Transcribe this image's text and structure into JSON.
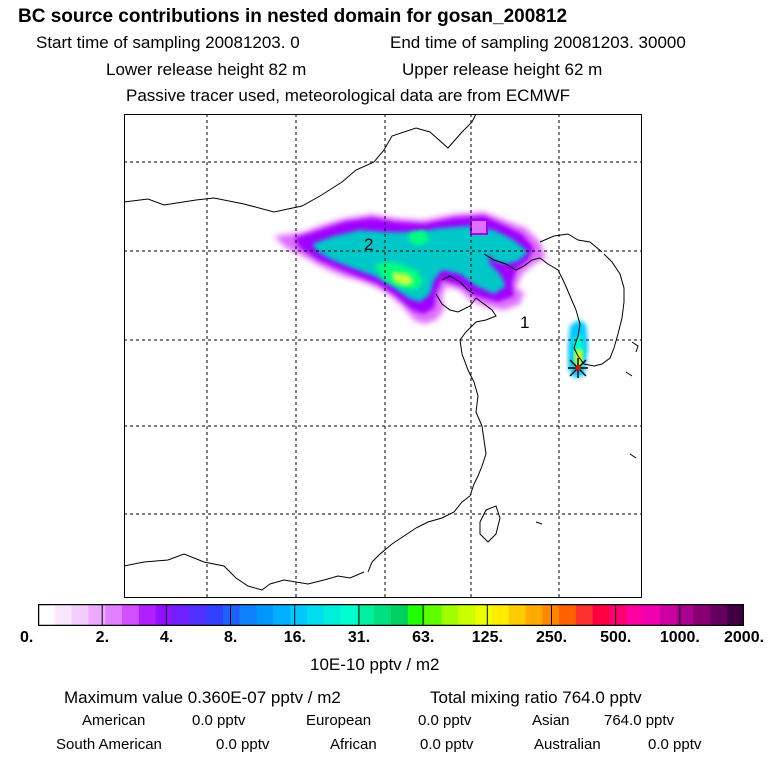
{
  "header": {
    "title": "BC  source contributions in nested domain for gosan_200812",
    "start_label": "Start time of sampling 20081203.     0",
    "end_label": "End time of sampling 20081203. 30000",
    "lower_label": "Lower release height   82 m",
    "upper_label": "Upper release height   62 m",
    "tracer_line": "Passive tracer used, meteorological data are from ECMWF"
  },
  "map": {
    "markers": [
      {
        "label": "2",
        "lon": 117.0,
        "lat": 43.2
      },
      {
        "label": "1",
        "lon": 125.5,
        "lat": 37.0
      }
    ],
    "receptor": {
      "name": "gosan",
      "lon": 126.2,
      "lat": 33.3
    },
    "plume_colors": {
      "outer": "#a000ff",
      "edge": "#e070ff",
      "mid": "#00c8c8",
      "core": "#00ff80",
      "peak": "#e0ff00"
    }
  },
  "colorbar": {
    "ticks": [
      "0.",
      "2.",
      "4.",
      "8.",
      "16.",
      "31.",
      "63.",
      "125.",
      "250.",
      "500.",
      "1000.",
      "2000."
    ],
    "colors": [
      "#ffffff",
      "#fbe6ff",
      "#f5ccff",
      "#eeaaff",
      "#e080ff",
      "#d050ff",
      "#b020ff",
      "#9010ff",
      "#7020ff",
      "#5030ff",
      "#3040ff",
      "#2060ff",
      "#1080ff",
      "#0098ff",
      "#00b0ff",
      "#00c8ff",
      "#00ddee",
      "#00eedd",
      "#00ffcc",
      "#00f0a0",
      "#00e080",
      "#00d060",
      "#20ff00",
      "#60ff00",
      "#a0ff00",
      "#ccff00",
      "#eeff00",
      "#ffee00",
      "#ffcc00",
      "#ffaa00",
      "#ff8800",
      "#ff6000",
      "#ff3030",
      "#ff0040",
      "#ff0070",
      "#ff00a0",
      "#ee00b0",
      "#cc00a0",
      "#aa0090",
      "#880070",
      "#660060",
      "#400040"
    ],
    "units": "10E-10 pptv / m2"
  },
  "stats": {
    "maximum": "Maximum value  0.360E-07 pptv / m2",
    "total": "Total mixing ratio      764.0 pptv",
    "regions": [
      {
        "name": "American",
        "value": "0.0 pptv"
      },
      {
        "name": "European",
        "value": "0.0 pptv"
      },
      {
        "name": "Asian",
        "value": "764.0 pptv"
      },
      {
        "name": "South American",
        "value": "0.0 pptv"
      },
      {
        "name": "African",
        "value": "0.0 pptv"
      },
      {
        "name": "Australian",
        "value": "0.0 pptv"
      }
    ]
  }
}
